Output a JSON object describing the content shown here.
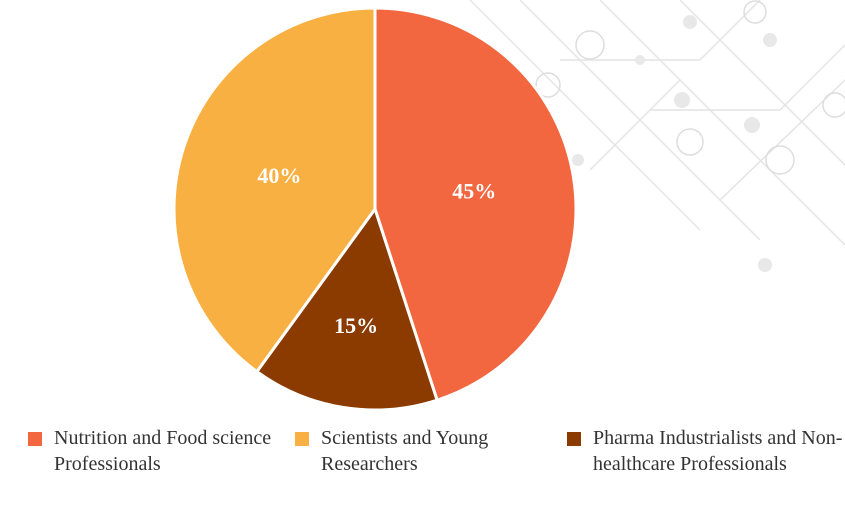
{
  "chart_data": {
    "type": "pie",
    "categories": [
      "Nutrition and Food science Professionals",
      "Scientists and Young Researchers",
      "Pharma Industrialists and Non-healthcare Professionals"
    ],
    "values": [
      45,
      40,
      15
    ],
    "value_labels": [
      "45%",
      "40%",
      "15%"
    ],
    "colors": [
      "#f26640",
      "#f9b042",
      "#8b3a00"
    ]
  }
}
